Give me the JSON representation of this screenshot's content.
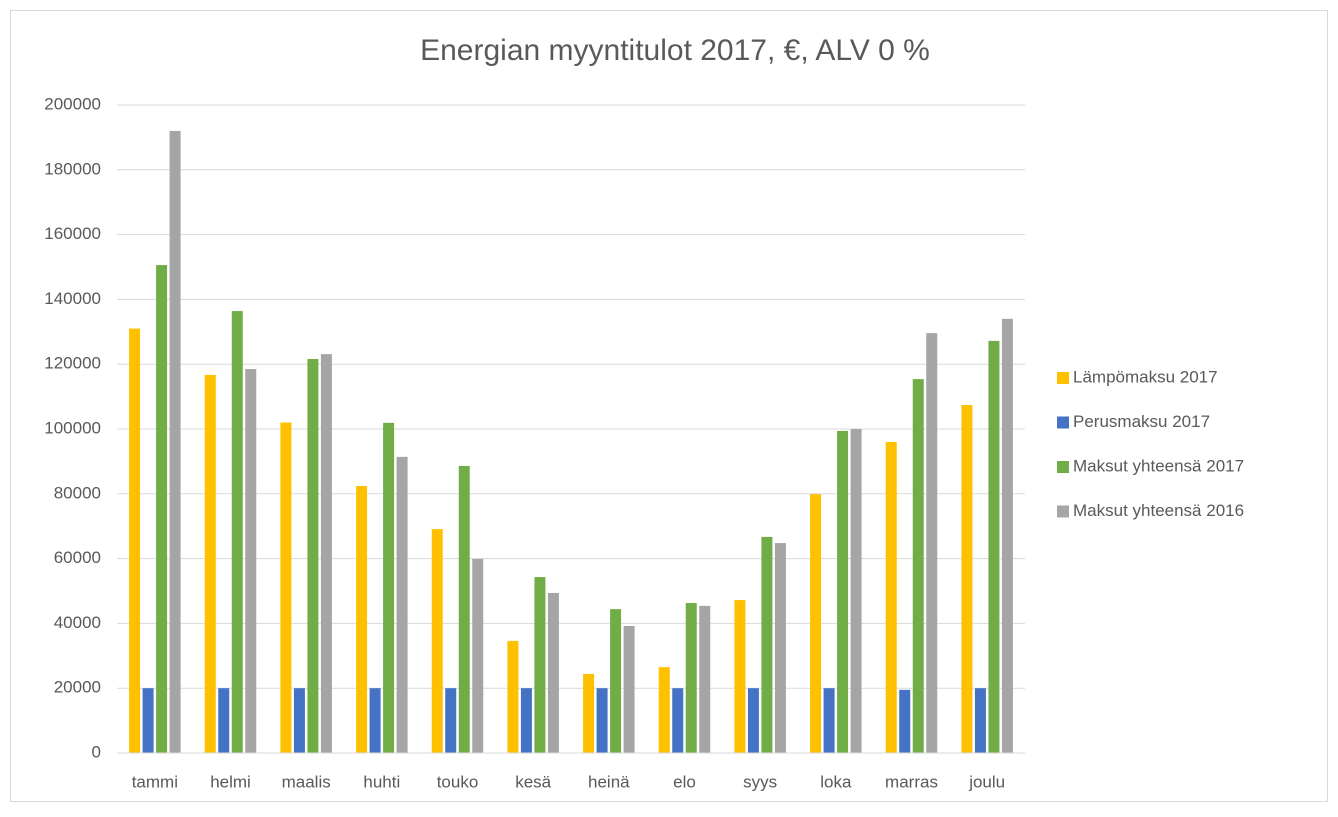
{
  "chart_data": {
    "type": "bar",
    "title": "Energian myyntitulot 2017, €, ALV 0 %",
    "categories": [
      "tammi",
      "helmi",
      "maalis",
      "huhti",
      "touko",
      "kesä",
      "heinä",
      "elo",
      "syys",
      "loka",
      "marras",
      "joulu"
    ],
    "series": [
      {
        "name": "Lämpömaksu 2017",
        "color": "#ffc000",
        "values": [
          131000,
          116700,
          102000,
          82400,
          69100,
          34600,
          24400,
          26500,
          47200,
          79900,
          96000,
          107400
        ]
      },
      {
        "name": "Perusmaksu 2017",
        "color": "#4472c4",
        "values": [
          20000,
          20000,
          20000,
          20000,
          20000,
          20000,
          20000,
          20000,
          20000,
          20000,
          19500,
          20000
        ]
      },
      {
        "name": "Maksut yhteensä 2017",
        "color": "#70ad47",
        "values": [
          150600,
          136400,
          121600,
          101900,
          88600,
          54300,
          44400,
          46300,
          66700,
          99400,
          115400,
          127200
        ]
      },
      {
        "name": "Maksut yhteensä 2016",
        "color": "#a5a5a5",
        "values": [
          192000,
          118500,
          123100,
          91400,
          59900,
          49400,
          39200,
          45400,
          64800,
          100000,
          129600,
          134000
        ]
      }
    ],
    "ylim": [
      0,
      200000
    ],
    "yticks": [
      0,
      20000,
      40000,
      60000,
      80000,
      100000,
      120000,
      140000,
      160000,
      180000,
      200000
    ],
    "grid": true,
    "legend": "right"
  }
}
